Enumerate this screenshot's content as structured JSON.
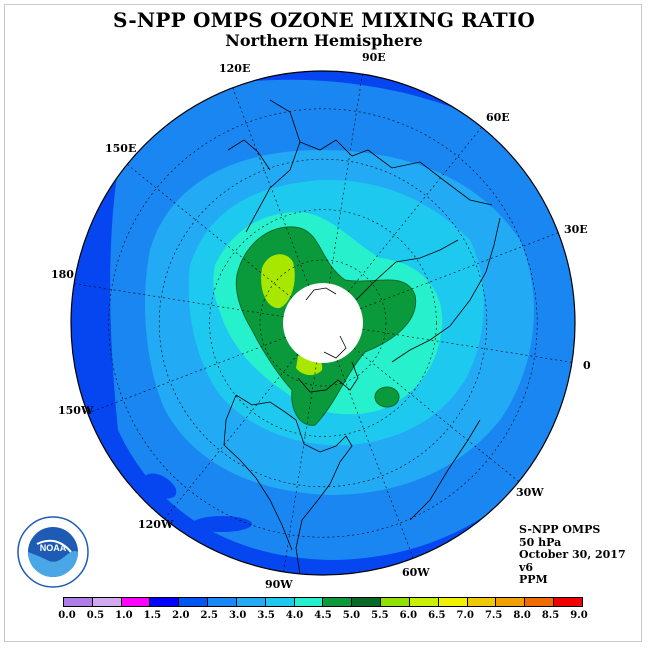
{
  "title": "S-NPP OMPS OZONE MIXING RATIO",
  "subtitle": "Northern Hemisphere",
  "longitude_labels": [
    "90E",
    "60E",
    "30E",
    "0",
    "30W",
    "60W",
    "90W",
    "120W",
    "150W",
    "180",
    "150E",
    "120E"
  ],
  "info": {
    "instrument": "S-NPP OMPS",
    "level": "50 hPa",
    "date": "October 30, 2017",
    "version": "v6",
    "units": "PPM"
  },
  "logo": {
    "name": "NOAA",
    "colors": {
      "blue": "#1d5bb5",
      "sky": "#4aa7e6"
    }
  },
  "colorbar": {
    "ticks": [
      "0.0",
      "0.5",
      "1.0",
      "1.5",
      "2.0",
      "2.5",
      "3.0",
      "3.5",
      "4.0",
      "4.5",
      "5.0",
      "5.5",
      "6.0",
      "6.5",
      "7.0",
      "7.5",
      "8.0",
      "8.5",
      "9.0"
    ],
    "colors": [
      "#b07de8",
      "#d2a8f0",
      "#ff00ff",
      "#0000ff",
      "#0055f5",
      "#1788f5",
      "#22aaf5",
      "#1ccaf0",
      "#24f0d0",
      "#0a9a3c",
      "#0a6a2a",
      "#90e000",
      "#c8f000",
      "#f0f000",
      "#f0c800",
      "#f0a000",
      "#f06a00",
      "#f00000",
      "#8b5a3a"
    ]
  },
  "map_colors": {
    "outer": "#0546f0",
    "band_2_5": "#1a86f2",
    "band_3_0": "#22aaf5",
    "band_3_5": "#1ec9f0",
    "band_4_0": "#27f0cc",
    "band_4_5": "#0a9a3c",
    "band_5_0": "#0a6a2a",
    "band_5_5": "#a8e800",
    "pole_gap": "#ffffff"
  }
}
